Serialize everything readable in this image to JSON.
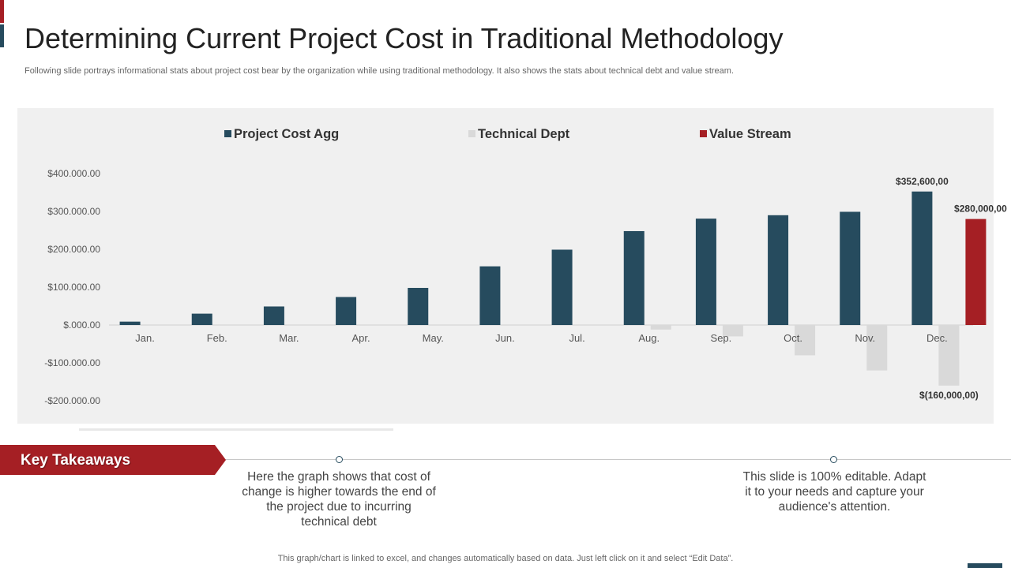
{
  "slide": {
    "title": "Determining  Current Project Cost in Traditional Methodology",
    "subtitle": "Following slide portrays informational stats about project cost bear by the organization while using traditional methodology. It also shows the stats about technical debt and value stream.",
    "key_takeaways_label": "Key Takeaways",
    "takeaway_1": "Here the graph shows that cost of change is higher towards the end of the project due to incurring technical debt",
    "takeaway_2": "This slide is 100% editable. Adapt it to your needs and capture your audience's attention.",
    "footer_note": "This graph/chart is linked to excel, and changes automatically based on data. Just left click on it and select “Edit Data”."
  },
  "colors": {
    "accent_red": "#a51f24",
    "accent_blue": "#264b5e",
    "technical_dept": "#d9d9d9",
    "panel_bg": "#f0f0f0"
  },
  "chart_data": {
    "type": "bar",
    "title": "",
    "xlabel": "",
    "ylabel": "",
    "categories": [
      "Jan.",
      "Feb.",
      "Mar.",
      "Apr.",
      "May.",
      "Jun.",
      "Jul.",
      "Aug.",
      "Sep.",
      "Oct.",
      "Nov.",
      "Dec."
    ],
    "ylim": [
      -200000,
      400000
    ],
    "yticks": [
      -200000,
      -100000,
      0,
      100000,
      200000,
      300000,
      400000
    ],
    "ytick_labels": [
      "-$200.000.00",
      "-$100.000.00",
      "$.000.00",
      "$100.000.00",
      "$200.000.00",
      "$300.000.00",
      "$400.000.00"
    ],
    "grid": false,
    "legend_position": "top",
    "series": [
      {
        "name": "Project Cost Agg",
        "color": "#264b5e",
        "values": [
          9000,
          30000,
          49000,
          74000,
          98000,
          155000,
          199000,
          248000,
          281000,
          290000,
          299000,
          352600
        ]
      },
      {
        "name": "Technical Dept",
        "color": "#d9d9d9",
        "values": [
          0,
          0,
          0,
          0,
          0,
          0,
          0,
          -12000,
          -30000,
          -80000,
          -120000,
          -160000
        ]
      },
      {
        "name": "Value Stream",
        "color": "#a51f24",
        "values": [
          0,
          0,
          0,
          0,
          0,
          0,
          0,
          0,
          0,
          0,
          0,
          280000
        ]
      }
    ],
    "data_labels": [
      {
        "series": "Project Cost Agg",
        "category": "Dec.",
        "text": "$352,600,00"
      },
      {
        "series": "Value Stream",
        "category": "Dec.",
        "text": "$280,000,00"
      },
      {
        "series": "Technical Dept",
        "category": "Dec.",
        "text": "$(160,000,00)"
      }
    ]
  }
}
